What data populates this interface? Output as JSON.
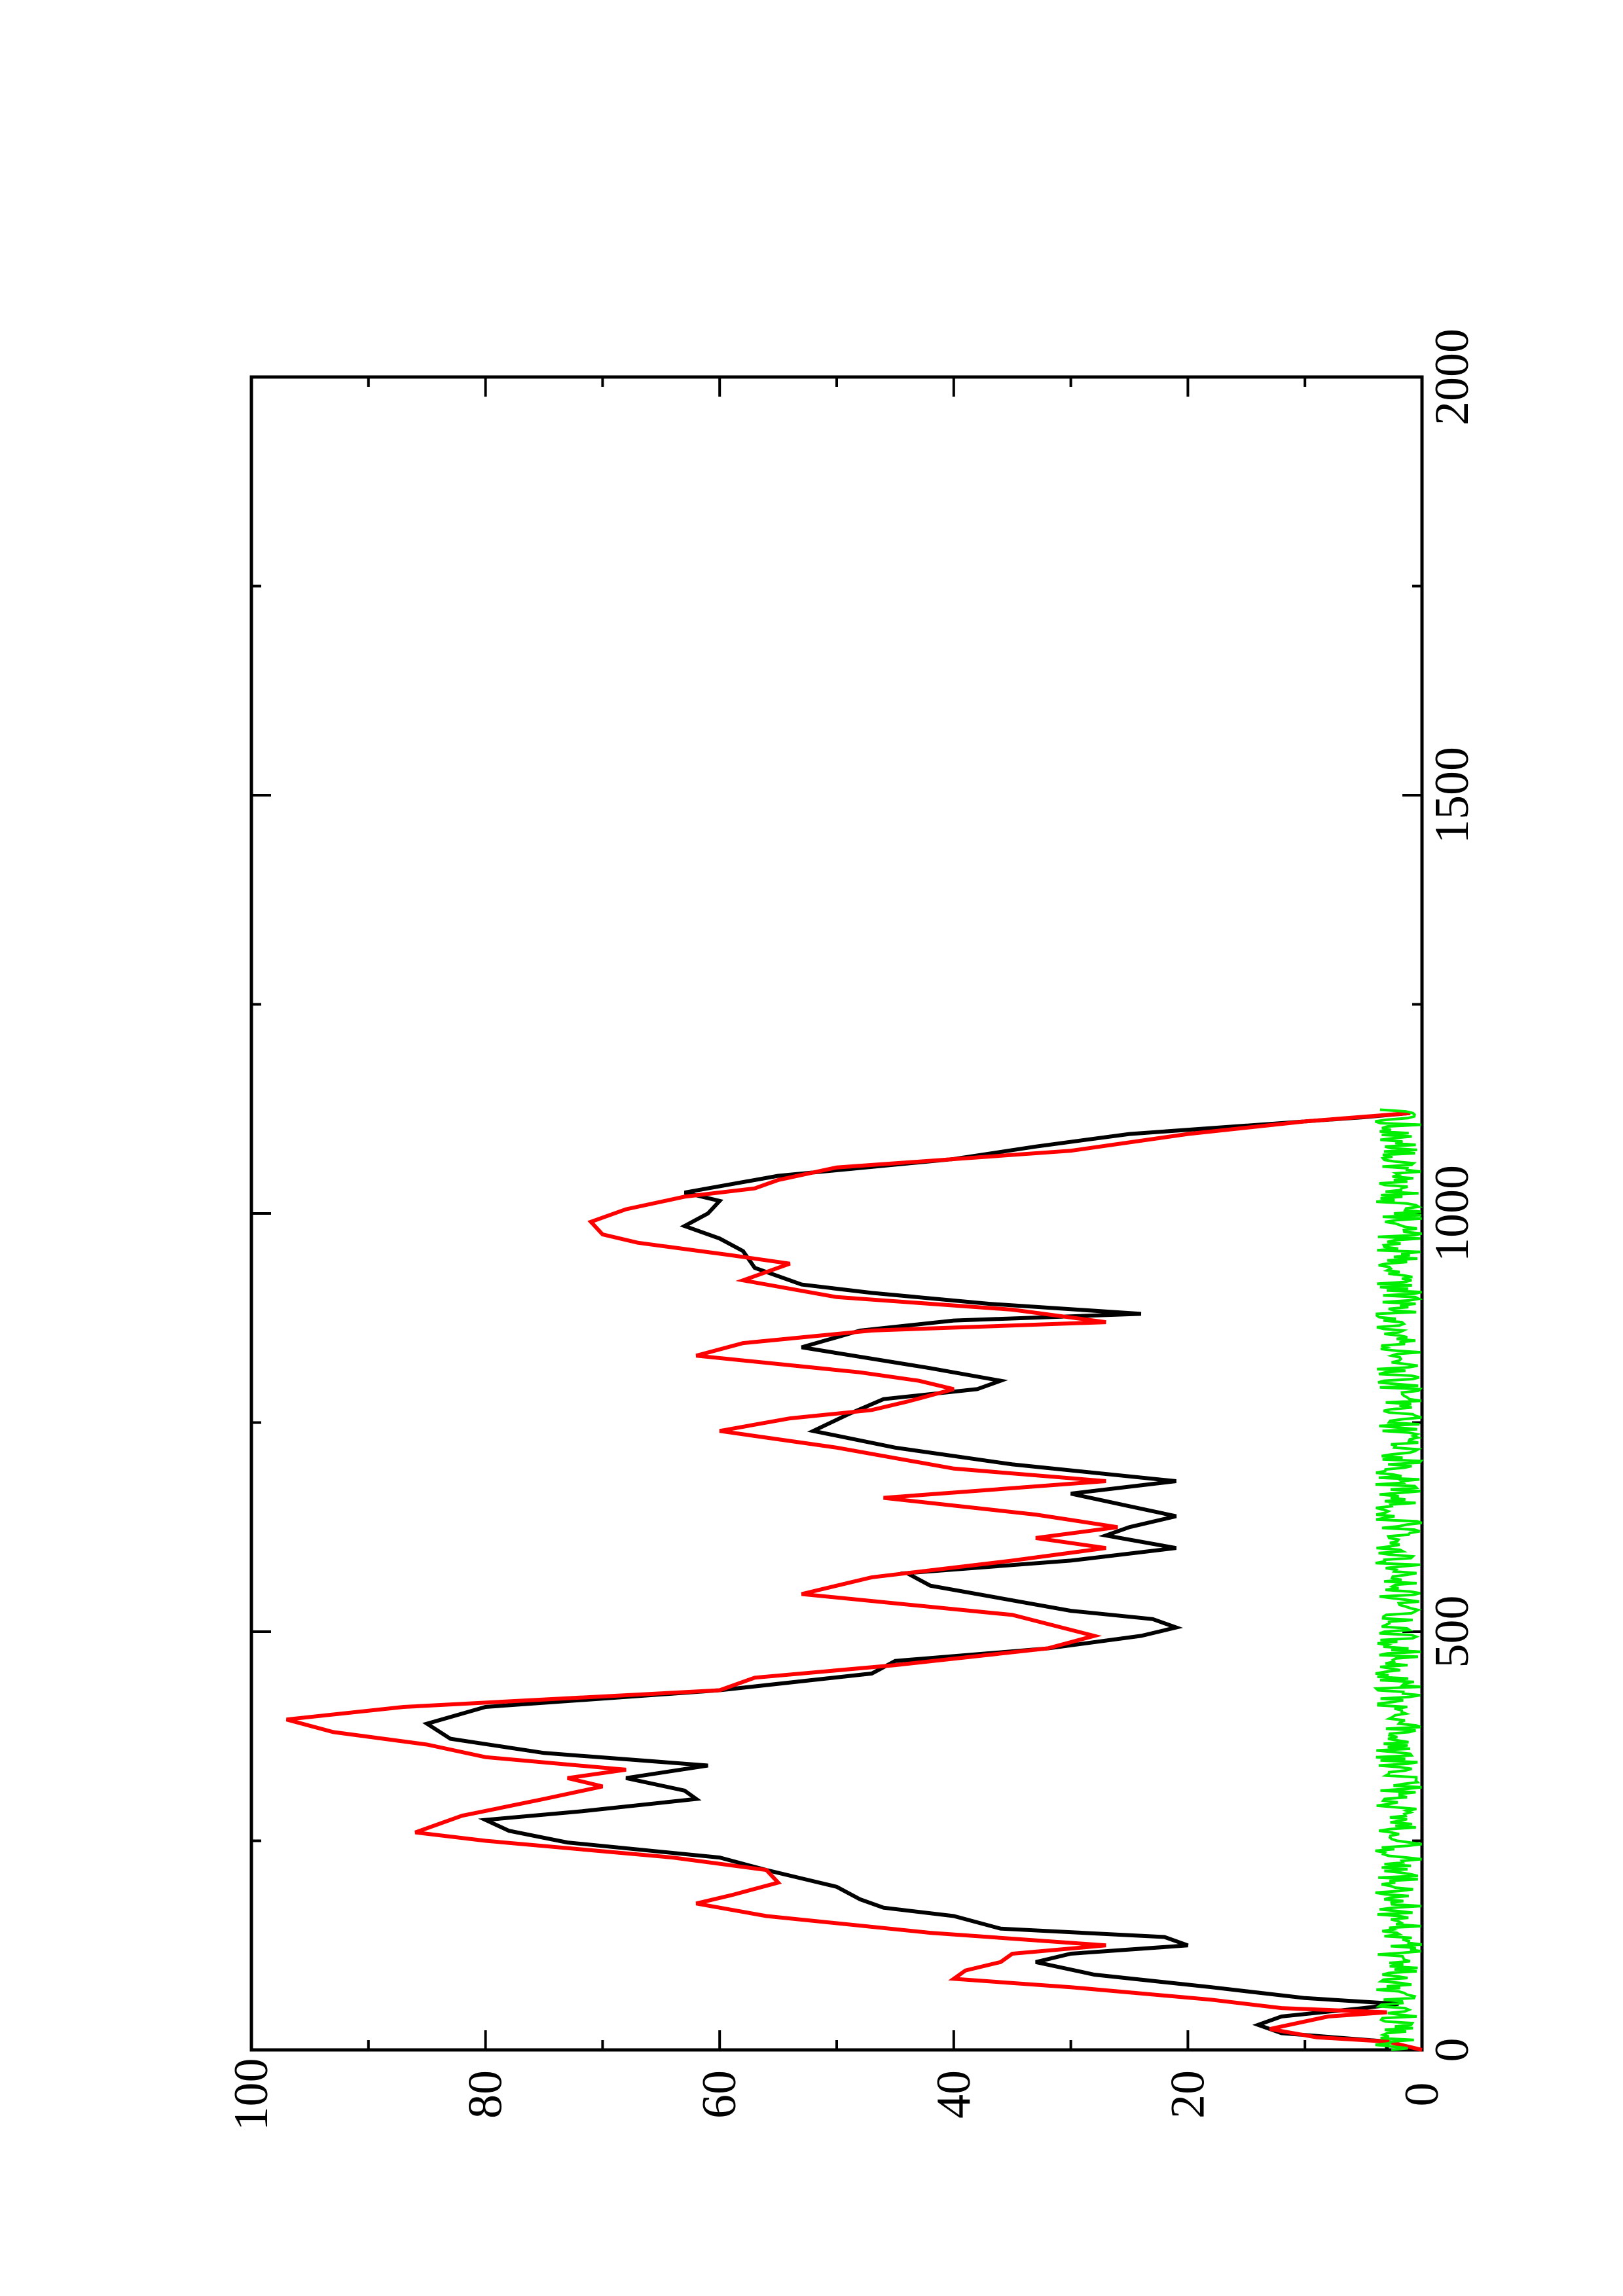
{
  "chart_data": {
    "type": "line",
    "orientation": "rotated 90 degrees counter-clockwise (x axis runs bottom to top, y axis runs right to left)",
    "xlim": [
      0,
      2000
    ],
    "ylim": [
      0,
      100
    ],
    "x_ticks": [
      "0",
      "500",
      "1000",
      "1500",
      "2000"
    ],
    "y_ticks": [
      "0",
      "20",
      "40",
      "60",
      "80",
      "100"
    ],
    "grid": false,
    "legend": "none",
    "series": [
      {
        "color": "#000000",
        "points": [
          [
            0,
            3
          ],
          [
            10,
            3
          ],
          [
            20,
            12
          ],
          [
            30,
            14
          ],
          [
            40,
            12
          ],
          [
            50,
            5
          ],
          [
            55,
            2
          ],
          [
            62,
            10
          ],
          [
            75,
            18
          ],
          [
            90,
            28
          ],
          [
            105,
            33
          ],
          [
            115,
            30
          ],
          [
            125,
            20
          ],
          [
            135,
            22
          ],
          [
            145,
            36
          ],
          [
            160,
            40
          ],
          [
            170,
            46
          ],
          [
            180,
            48
          ],
          [
            195,
            50
          ],
          [
            205,
            53
          ],
          [
            215,
            56
          ],
          [
            230,
            60
          ],
          [
            248,
            73
          ],
          [
            262,
            78
          ],
          [
            275,
            80
          ],
          [
            285,
            72
          ],
          [
            300,
            62
          ],
          [
            310,
            63
          ],
          [
            325,
            68
          ],
          [
            340,
            61
          ],
          [
            355,
            75
          ],
          [
            372,
            83
          ],
          [
            390,
            85
          ],
          [
            410,
            80
          ],
          [
            430,
            60
          ],
          [
            450,
            47
          ],
          [
            465,
            45
          ],
          [
            480,
            32
          ],
          [
            495,
            24
          ],
          [
            505,
            21
          ],
          [
            515,
            23
          ],
          [
            525,
            30
          ],
          [
            540,
            36
          ],
          [
            555,
            42
          ],
          [
            570,
            44
          ],
          [
            585,
            30
          ],
          [
            600,
            21
          ],
          [
            615,
            27
          ],
          [
            625,
            25
          ],
          [
            638,
            21
          ],
          [
            650,
            25
          ],
          [
            665,
            30
          ],
          [
            680,
            21
          ],
          [
            700,
            35
          ],
          [
            720,
            45
          ],
          [
            740,
            52
          ],
          [
            760,
            49
          ],
          [
            778,
            46
          ],
          [
            790,
            38
          ],
          [
            800,
            36
          ],
          [
            815,
            42
          ],
          [
            840,
            53
          ],
          [
            860,
            48
          ],
          [
            872,
            40
          ],
          [
            880,
            24
          ],
          [
            892,
            37
          ],
          [
            905,
            47
          ],
          [
            915,
            53
          ],
          [
            935,
            57
          ],
          [
            955,
            58
          ],
          [
            970,
            60
          ],
          [
            985,
            63
          ],
          [
            1000,
            61
          ],
          [
            1015,
            60
          ],
          [
            1025,
            63
          ],
          [
            1045,
            55
          ],
          [
            1065,
            40
          ],
          [
            1080,
            33
          ],
          [
            1095,
            25
          ],
          [
            1105,
            15
          ],
          [
            1115,
            5
          ],
          [
            1120,
            1
          ]
        ]
      },
      {
        "color": "#ff0000",
        "points": [
          [
            0,
            0
          ],
          [
            10,
            3
          ],
          [
            15,
            9
          ],
          [
            25,
            13
          ],
          [
            40,
            8
          ],
          [
            45,
            3
          ],
          [
            50,
            12
          ],
          [
            60,
            18
          ],
          [
            75,
            30
          ],
          [
            85,
            40
          ],
          [
            95,
            39
          ],
          [
            105,
            36
          ],
          [
            115,
            35
          ],
          [
            125,
            27
          ],
          [
            140,
            42
          ],
          [
            160,
            56
          ],
          [
            175,
            62
          ],
          [
            185,
            59
          ],
          [
            200,
            55
          ],
          [
            215,
            56
          ],
          [
            230,
            64
          ],
          [
            250,
            80
          ],
          [
            260,
            86
          ],
          [
            280,
            82
          ],
          [
            300,
            75
          ],
          [
            315,
            70
          ],
          [
            325,
            73
          ],
          [
            335,
            68
          ],
          [
            350,
            80
          ],
          [
            365,
            85
          ],
          [
            380,
            93
          ],
          [
            395,
            97
          ],
          [
            410,
            87
          ],
          [
            430,
            60
          ],
          [
            445,
            57
          ],
          [
            460,
            45
          ],
          [
            480,
            32
          ],
          [
            495,
            28
          ],
          [
            520,
            35
          ],
          [
            545,
            53
          ],
          [
            565,
            47
          ],
          [
            585,
            35
          ],
          [
            600,
            27
          ],
          [
            612,
            33
          ],
          [
            625,
            26
          ],
          [
            640,
            33
          ],
          [
            660,
            46
          ],
          [
            680,
            27
          ],
          [
            695,
            40
          ],
          [
            720,
            50
          ],
          [
            740,
            60
          ],
          [
            755,
            54
          ],
          [
            765,
            47
          ],
          [
            775,
            44
          ],
          [
            790,
            40
          ],
          [
            800,
            43
          ],
          [
            810,
            48
          ],
          [
            830,
            62
          ],
          [
            845,
            58
          ],
          [
            860,
            47
          ],
          [
            870,
            27
          ],
          [
            885,
            35
          ],
          [
            900,
            50
          ],
          [
            920,
            58
          ],
          [
            940,
            54
          ],
          [
            950,
            59
          ],
          [
            965,
            67
          ],
          [
            975,
            70
          ],
          [
            990,
            71
          ],
          [
            1005,
            68
          ],
          [
            1020,
            63
          ],
          [
            1030,
            57
          ],
          [
            1040,
            55
          ],
          [
            1055,
            50
          ],
          [
            1075,
            30
          ],
          [
            1095,
            20
          ],
          [
            1110,
            10
          ],
          [
            1120,
            1
          ]
        ]
      },
      {
        "color": "#00ee00",
        "noise_range": [
          0,
          4
        ],
        "x_range": [
          0,
          1125
        ]
      }
    ]
  }
}
